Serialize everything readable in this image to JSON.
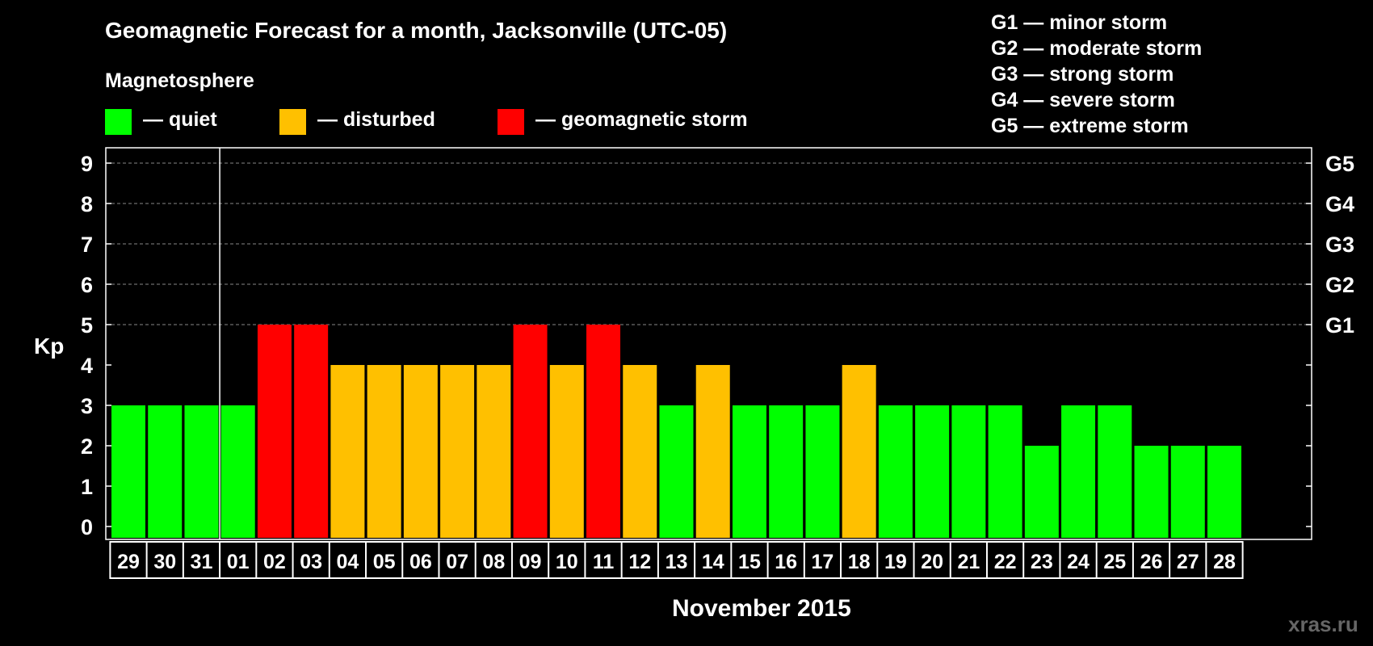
{
  "chart_data": {
    "type": "bar",
    "title": "Geomagnetic Forecast for a month, Jacksonville (UTC-05)",
    "xlabel": "November 2015",
    "ylabel": "Kp",
    "ylim": [
      0,
      9
    ],
    "yticks": [
      "0",
      "1",
      "2",
      "3",
      "4",
      "5",
      "6",
      "7",
      "8",
      "9"
    ],
    "right_ticks": [
      {
        "value": 5,
        "label": "G1"
      },
      {
        "value": 6,
        "label": "G2"
      },
      {
        "value": 7,
        "label": "G3"
      },
      {
        "value": 8,
        "label": "G4"
      },
      {
        "value": 9,
        "label": "G5"
      }
    ],
    "categories": [
      "29",
      "30",
      "31",
      "01",
      "02",
      "03",
      "04",
      "05",
      "06",
      "07",
      "08",
      "09",
      "10",
      "11",
      "12",
      "13",
      "14",
      "15",
      "16",
      "17",
      "18",
      "19",
      "20",
      "21",
      "22",
      "23",
      "24",
      "25",
      "26",
      "27",
      "28"
    ],
    "values": [
      3,
      3,
      3,
      3,
      5,
      5,
      4,
      4,
      4,
      4,
      4,
      5,
      4,
      5,
      4,
      3,
      4,
      3,
      3,
      3,
      4,
      3,
      3,
      3,
      3,
      2,
      3,
      3,
      2,
      2,
      2
    ],
    "month_divider_after_index": 2,
    "grid": "dashed at Kp 5-9",
    "legend": {
      "heading": "Magnetosphere",
      "items": [
        {
          "label": "— quiet",
          "color": "#00ff00"
        },
        {
          "label": "— disturbed",
          "color": "#ffc000"
        },
        {
          "label": "— geomagnetic storm",
          "color": "#ff0000"
        }
      ]
    },
    "storm_levels": [
      "G1 — minor storm",
      "G2 — moderate storm",
      "G3 — strong storm",
      "G4 — severe storm",
      "G5 — extreme storm"
    ],
    "colors": {
      "quiet": "#00ff00",
      "disturbed": "#ffc000",
      "storm": "#ff0000"
    }
  },
  "watermark": "xras.ru"
}
